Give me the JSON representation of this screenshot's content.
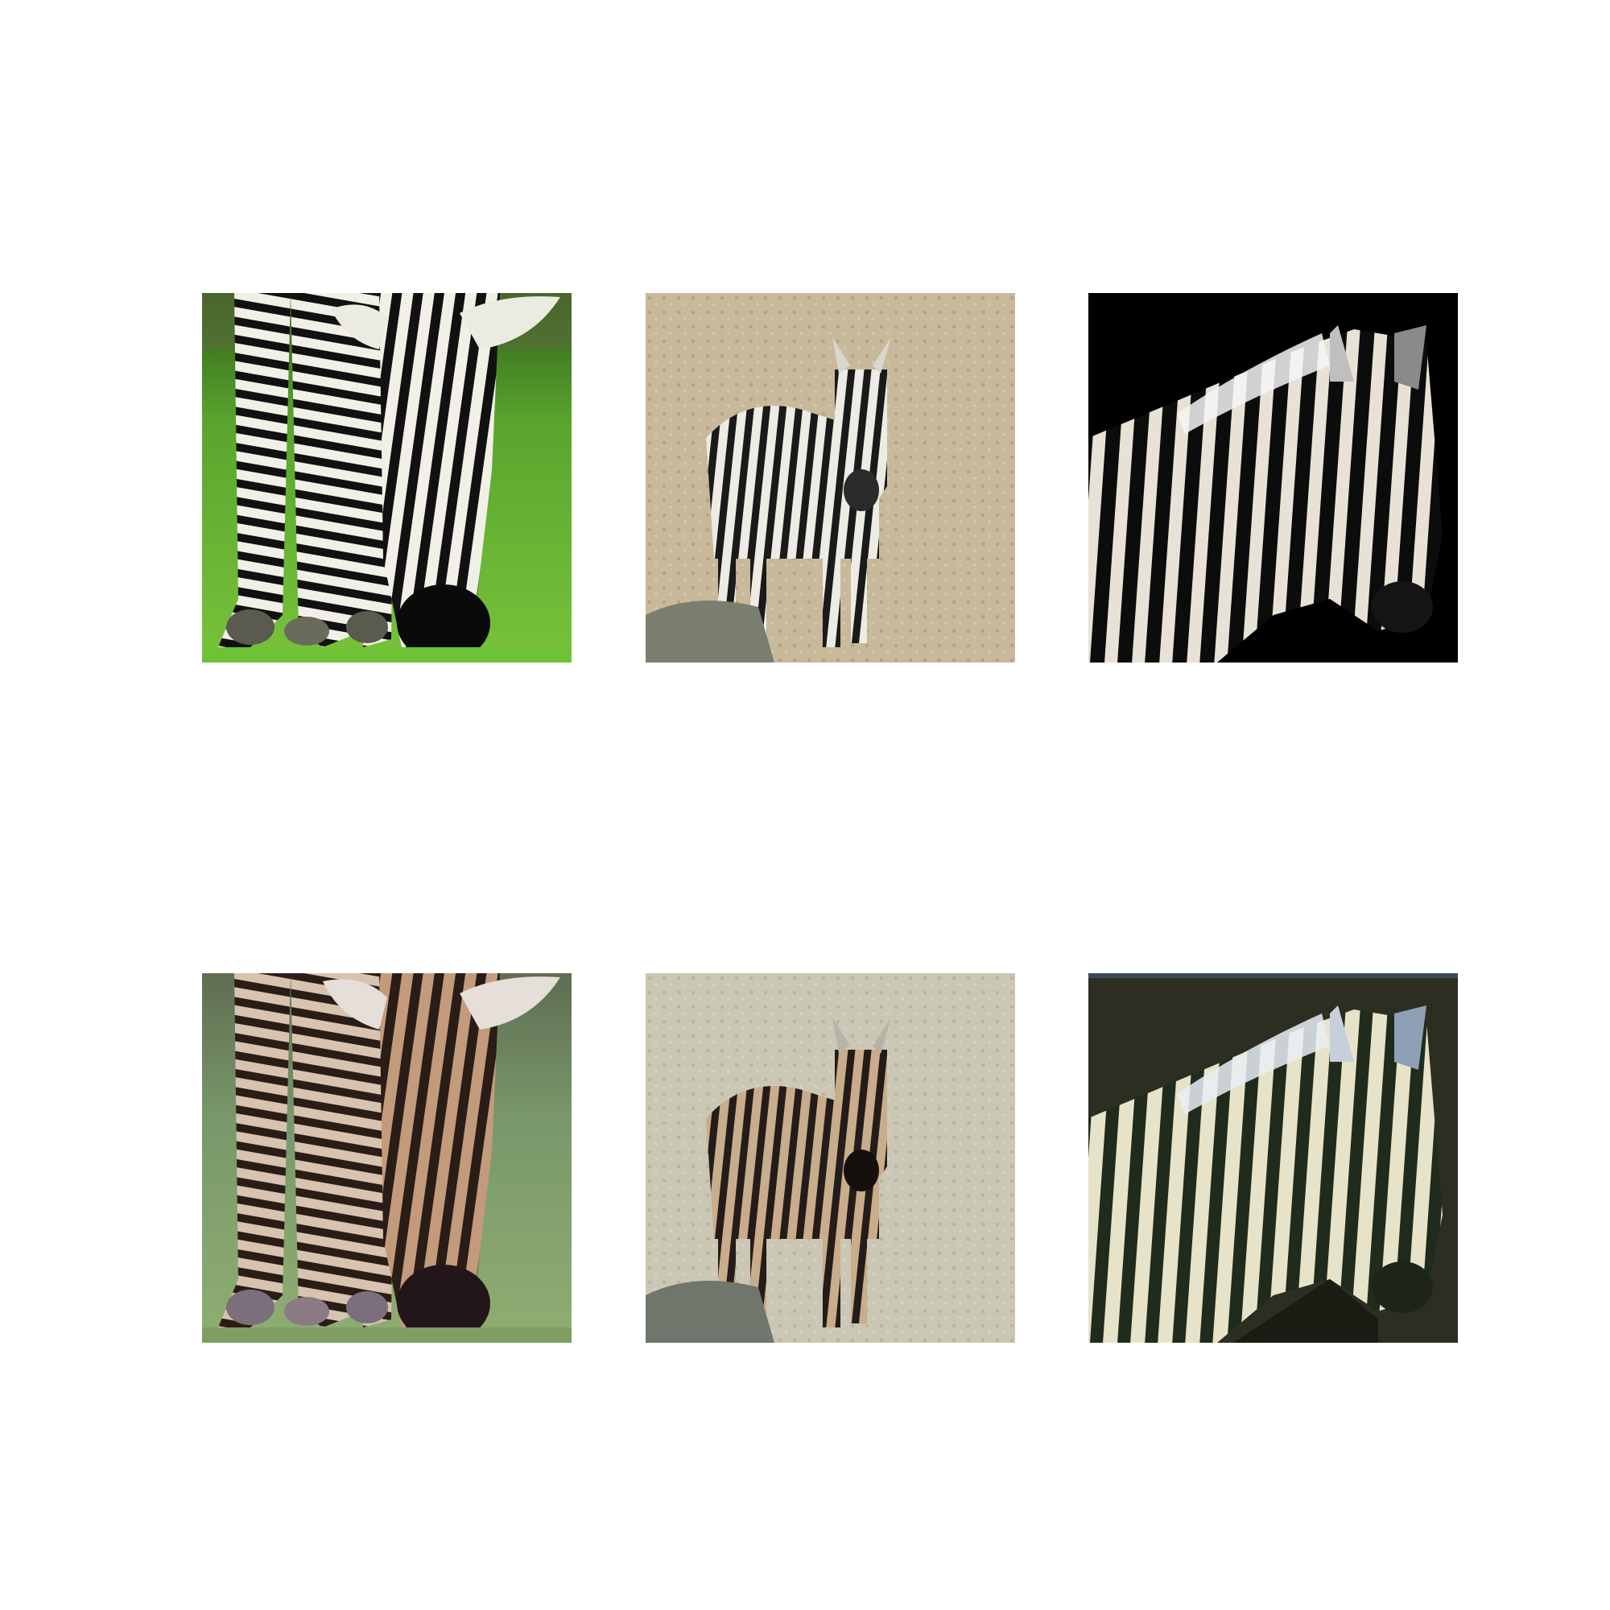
{
  "figure": {
    "rows": [
      {
        "role": "input",
        "tiles": [
          {
            "scene": "zebra-grazing-on-grass",
            "palette": {
              "bg": "#4f9a2a",
              "bg2": "#77c33b",
              "stripe": "#111111",
              "coat": "#f2f0e6",
              "muzzle": "#0a0a0a"
            }
          },
          {
            "scene": "zebra-foal-standing-on-sand",
            "palette": {
              "bg": "#c9b99b",
              "bg2": "#b3a283",
              "stripe": "#1a1a1a",
              "coat": "#ecebe4",
              "rock": "#7b7d6e"
            }
          },
          {
            "scene": "zebra-profile-on-black",
            "palette": {
              "bg": "#000000",
              "stripe": "#0c0c0c",
              "coat": "#e8e2d6",
              "mane": "#f4f4f4"
            }
          }
        ]
      },
      {
        "role": "output",
        "tiles": [
          {
            "scene": "zebra-grazing-on-grass",
            "palette": {
              "bg": "#79986a",
              "bg2": "#8fae72",
              "stripe": "#2a1c16",
              "coat": "#c49a7c",
              "muzzle": "#22161a"
            }
          },
          {
            "scene": "zebra-foal-standing-on-sand",
            "palette": {
              "bg": "#cbc7b5",
              "bg2": "#b9b4a0",
              "stripe": "#241c18",
              "coat": "#c9ac8a",
              "rock": "#70766c"
            }
          },
          {
            "scene": "zebra-profile-on-black",
            "palette": {
              "bg": "#2c2e22",
              "stripe": "#1f2b1c",
              "coat": "#e6e3c8",
              "mane": "#e9eef5"
            }
          }
        ]
      }
    ]
  }
}
